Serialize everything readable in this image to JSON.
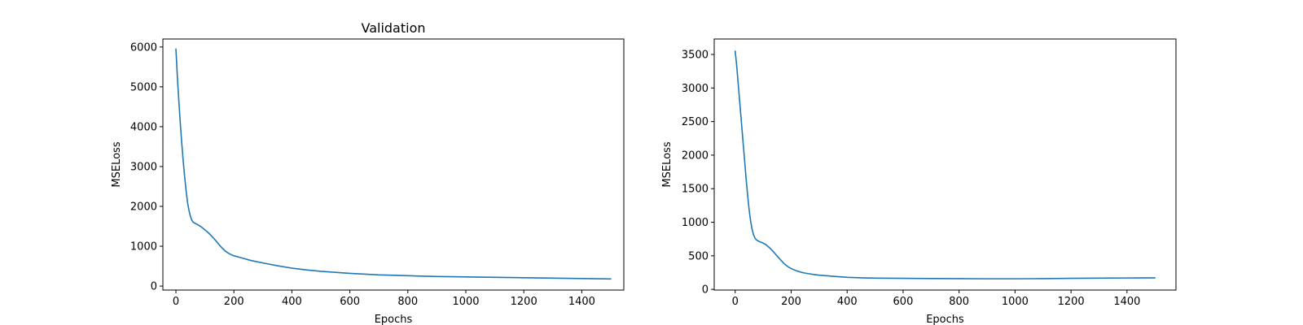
{
  "chart_data": [
    {
      "type": "line",
      "title": "Validation",
      "xlabel": "Epochs",
      "ylabel": "MSELoss",
      "xlim": [
        -45,
        1545
      ],
      "ylim": [
        -100,
        6200
      ],
      "xticks": [
        0,
        200,
        400,
        600,
        800,
        1000,
        1200,
        1400
      ],
      "yticks": [
        0,
        1000,
        2000,
        3000,
        4000,
        5000,
        6000
      ],
      "grid": false,
      "color": "#1f77b4",
      "series": [
        {
          "x": [
            0,
            5,
            10,
            15,
            20,
            25,
            30,
            35,
            40,
            45,
            50,
            55,
            60,
            65,
            70,
            80,
            90,
            100,
            110,
            120,
            130,
            140,
            150,
            160,
            170,
            180,
            190,
            200,
            220,
            240,
            260,
            280,
            300,
            350,
            400,
            450,
            500,
            600,
            700,
            800,
            900,
            1000,
            1100,
            1200,
            1300,
            1400,
            1500
          ],
          "y": [
            5950,
            5250,
            4650,
            4100,
            3600,
            3150,
            2750,
            2400,
            2100,
            1900,
            1750,
            1650,
            1600,
            1580,
            1560,
            1520,
            1470,
            1410,
            1350,
            1280,
            1200,
            1120,
            1030,
            950,
            880,
            830,
            790,
            760,
            720,
            680,
            640,
            610,
            580,
            510,
            450,
            405,
            370,
            320,
            280,
            260,
            240,
            230,
            220,
            210,
            200,
            190,
            180
          ]
        }
      ]
    },
    {
      "type": "line",
      "title": "",
      "xlabel": "Epochs",
      "ylabel": "MSELoss",
      "xlim": [
        -75,
        1575
      ],
      "ylim": [
        -10,
        3730
      ],
      "xticks": [
        0,
        200,
        400,
        600,
        800,
        1000,
        1200,
        1400
      ],
      "yticks": [
        0,
        500,
        1000,
        1500,
        2000,
        2500,
        3000,
        3500
      ],
      "grid": false,
      "color": "#1f77b4",
      "series": [
        {
          "x": [
            0,
            5,
            10,
            15,
            20,
            25,
            30,
            35,
            40,
            45,
            50,
            55,
            60,
            65,
            70,
            75,
            80,
            90,
            100,
            110,
            120,
            130,
            140,
            150,
            160,
            170,
            180,
            190,
            200,
            220,
            240,
            260,
            280,
            300,
            350,
            400,
            450,
            500,
            600,
            700,
            800,
            900,
            1000,
            1100,
            1200,
            1300,
            1400,
            1500
          ],
          "y": [
            3550,
            3350,
            3100,
            2850,
            2600,
            2350,
            2100,
            1850,
            1600,
            1380,
            1180,
            1020,
            900,
            820,
            770,
            740,
            725,
            705,
            690,
            665,
            630,
            590,
            545,
            495,
            450,
            405,
            365,
            335,
            310,
            275,
            250,
            235,
            222,
            212,
            195,
            180,
            172,
            168,
            165,
            162,
            160,
            158,
            158,
            160,
            165,
            168,
            170,
            172
          ]
        }
      ]
    }
  ]
}
